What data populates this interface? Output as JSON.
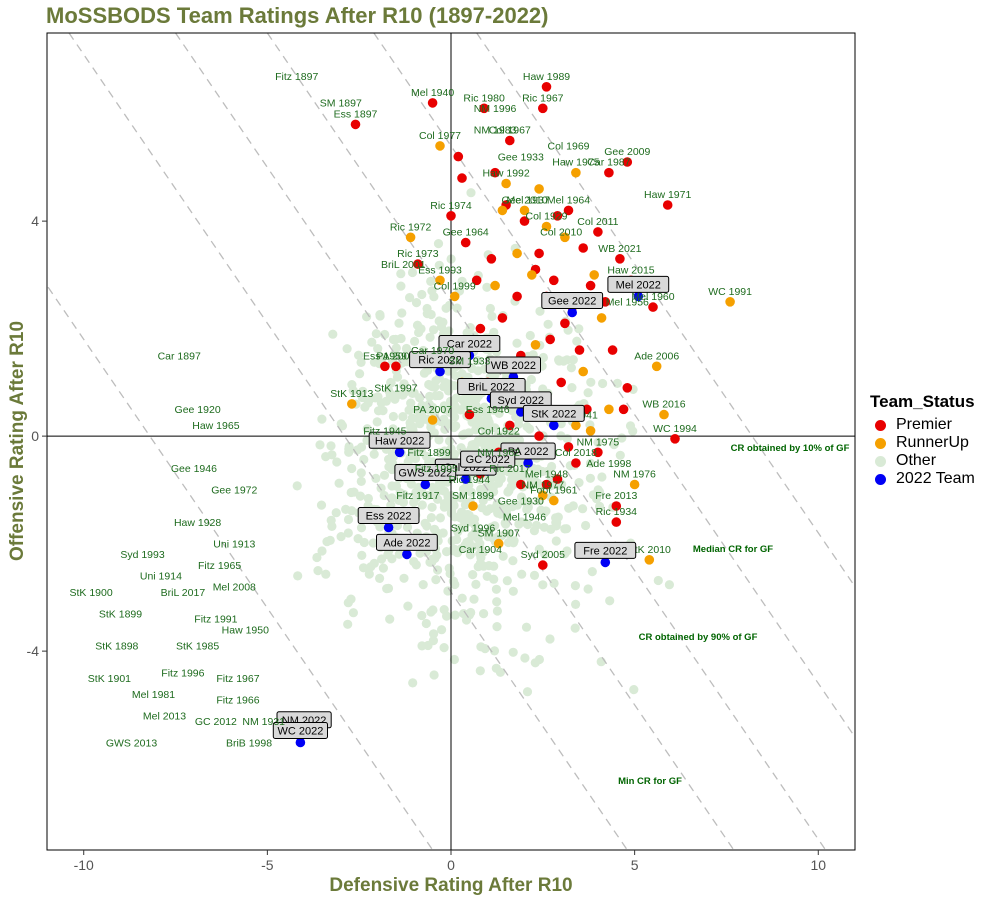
{
  "chart_data": {
    "type": "scatter",
    "title": "MoSSBODS Team Ratings After R10 (1897-2022)",
    "xlabel": "Defensive Rating After R10",
    "ylabel": "Offensive Rating After R10",
    "xlim": [
      -11,
      11
    ],
    "ylim": [
      -7.7,
      7.5
    ],
    "x_ticks": [
      -10,
      -5,
      0,
      5,
      10
    ],
    "y_ticks": [
      -4,
      0,
      4
    ],
    "grid": false,
    "legend_position": "right",
    "legend": {
      "title": "Team_Status",
      "entries": [
        {
          "label": "Premier",
          "color": "#e80000"
        },
        {
          "label": "RunnerUp",
          "color": "#f5a000"
        },
        {
          "label": "Other",
          "color": "#d9ead6"
        },
        {
          "label": "2022 Team",
          "color": "#0000f5"
        }
      ]
    },
    "reference_lines": [
      {
        "label": "CR obtained by 10% of GF",
        "c": 5.4
      },
      {
        "label": "Median CR for GF",
        "c": 2.5
      },
      {
        "label": "CR obtained by 90% of GF",
        "c": 0.0
      },
      {
        "label": "Min CR for GF",
        "c": -2.9
      }
    ],
    "series": [
      {
        "name": "Premier",
        "points": [
          {
            "x": 2.6,
            "y": 6.5,
            "label": "Haw 1989"
          },
          {
            "x": -0.5,
            "y": 6.2,
            "label": "Mel 1940"
          },
          {
            "x": 0.9,
            "y": 6.1,
            "label": "Ric 1980"
          },
          {
            "x": 2.5,
            "y": 6.1,
            "label": "Ric 1967"
          },
          {
            "x": -2.6,
            "y": 5.8,
            "label": "Ess 1897"
          },
          {
            "x": 1.6,
            "y": 5.5,
            "label": "Col 1967"
          },
          {
            "x": 4.8,
            "y": 5.1,
            "label": "Gee 2009"
          },
          {
            "x": 4.3,
            "y": 4.9,
            "label": "Car 1987"
          },
          {
            "x": 5.9,
            "y": 4.3,
            "label": "Haw 1971"
          },
          {
            "x": 0.0,
            "y": 4.1,
            "label": "Ric 1974"
          },
          {
            "x": 3.2,
            "y": 4.2,
            "label": "Mel 1964"
          },
          {
            "x": 4.0,
            "y": 3.8,
            "label": "Col 2011"
          },
          {
            "x": 0.4,
            "y": 3.6,
            "label": "Gee 1964"
          },
          {
            "x": -0.9,
            "y": 3.2,
            "label": "Ric 1973"
          },
          {
            "x": 4.6,
            "y": 3.3,
            "label": "WB 2021"
          },
          {
            "x": 4.9,
            "y": 2.9,
            "label": "Haw 2015"
          },
          {
            "x": 5.5,
            "y": 2.4,
            "label": "Mel 1960"
          },
          {
            "x": 4.0,
            "y": -0.3,
            "label": "NM 1975"
          },
          {
            "x": 3.4,
            "y": -0.5,
            "label": "Col 2018"
          },
          {
            "x": 6.1,
            "y": -0.05,
            "label": "WC 1994"
          },
          {
            "x": 2.6,
            "y": -0.9,
            "label": "Mel 1948"
          },
          {
            "x": 4.5,
            "y": -1.3,
            "label": "Fre 2013"
          },
          {
            "x": 4.5,
            "y": -1.6,
            "label": "Ric 1934"
          },
          {
            "x": 2.5,
            "y": -2.4,
            "label": "Syd 2005"
          },
          {
            "x": -1.8,
            "y": 1.3,
            "label": "Ess 1959"
          },
          {
            "x": -1.5,
            "y": 1.3,
            "label": "PA 2004"
          },
          {
            "x": 2.7,
            "y": 1.8
          },
          {
            "x": 3.1,
            "y": 2.1
          },
          {
            "x": 1.8,
            "y": 2.6
          },
          {
            "x": 2.3,
            "y": 3.1
          },
          {
            "x": 1.2,
            "y": 4.9
          },
          {
            "x": 1.5,
            "y": 4.3
          },
          {
            "x": 2.9,
            "y": 4.1
          },
          {
            "x": 0.3,
            "y": 4.8
          },
          {
            "x": 2.0,
            "y": 4.0
          },
          {
            "x": 3.6,
            "y": 3.5
          },
          {
            "x": 1.1,
            "y": 3.3
          },
          {
            "x": 2.4,
            "y": 3.4
          },
          {
            "x": 0.7,
            "y": 2.9
          },
          {
            "x": 3.8,
            "y": 2.8
          },
          {
            "x": 1.4,
            "y": 2.2
          },
          {
            "x": 2.8,
            "y": 2.9
          },
          {
            "x": 4.2,
            "y": 2.5
          },
          {
            "x": 0.8,
            "y": 2.0
          },
          {
            "x": 1.9,
            "y": 1.5
          },
          {
            "x": 3.5,
            "y": 1.6
          },
          {
            "x": 4.4,
            "y": 1.6
          },
          {
            "x": 1.0,
            "y": 1.0
          },
          {
            "x": 2.1,
            "y": 0.6
          },
          {
            "x": 3.0,
            "y": 1.0
          },
          {
            "x": 4.8,
            "y": 0.9
          },
          {
            "x": 1.6,
            "y": 0.2
          },
          {
            "x": 3.7,
            "y": 0.5
          },
          {
            "x": 0.5,
            "y": 0.4
          },
          {
            "x": 2.4,
            "y": 0.0
          },
          {
            "x": 4.7,
            "y": 0.5
          },
          {
            "x": 1.3,
            "y": -0.3
          },
          {
            "x": 3.2,
            "y": -0.2
          },
          {
            "x": 0.8,
            "y": -0.7
          },
          {
            "x": 2.9,
            "y": -0.8
          },
          {
            "x": 1.9,
            "y": -0.9
          },
          {
            "x": 0.2,
            "y": 5.2
          },
          {
            "x": 3.3,
            "y": 2.4
          },
          {
            "x": 2.6,
            "y": 2.6
          }
        ]
      },
      {
        "name": "RunnerUp",
        "points": [
          {
            "x": -0.3,
            "y": 5.4,
            "label": "Col 1977"
          },
          {
            "x": 1.5,
            "y": 4.7,
            "label": "Haw 1992"
          },
          {
            "x": 3.4,
            "y": 4.9,
            "label": "Haw 1975"
          },
          {
            "x": 2.0,
            "y": 4.2,
            "label": "Gee 2010"
          },
          {
            "x": 2.6,
            "y": 3.9,
            "label": "Col 1929"
          },
          {
            "x": -1.1,
            "y": 3.7,
            "label": "Ric 1972"
          },
          {
            "x": -0.3,
            "y": 2.9,
            "label": "Ess 1993"
          },
          {
            "x": 0.1,
            "y": 2.6,
            "label": "Col 1999"
          },
          {
            "x": 7.6,
            "y": 2.5,
            "label": "WC 1991"
          },
          {
            "x": 5.6,
            "y": 1.3,
            "label": "Ade 2006"
          },
          {
            "x": 5.8,
            "y": 0.4,
            "label": "WB 2016"
          },
          {
            "x": -2.7,
            "y": 0.6,
            "label": "StK 1913"
          },
          {
            "x": -0.5,
            "y": 0.3,
            "label": "PA 2007"
          },
          {
            "x": 3.4,
            "y": 0.2,
            "label": "Ess 1941"
          },
          {
            "x": 5.0,
            "y": -0.9,
            "label": "NM 1976"
          },
          {
            "x": 2.5,
            "y": -1.1,
            "label": "NM 1977"
          },
          {
            "x": 2.8,
            "y": -1.2,
            "label": "Foot 1961"
          },
          {
            "x": 5.4,
            "y": -2.3,
            "label": "StK 2010"
          },
          {
            "x": 1.3,
            "y": -2.0,
            "label": "SM 1907"
          },
          {
            "x": 0.6,
            "y": -1.3,
            "label": "SM 1899"
          },
          {
            "x": 1.8,
            "y": 3.4
          },
          {
            "x": 2.2,
            "y": 3.0
          },
          {
            "x": 3.9,
            "y": 3.0
          },
          {
            "x": 1.2,
            "y": 2.8
          },
          {
            "x": 3.0,
            "y": 2.5
          },
          {
            "x": 4.1,
            "y": 2.2
          },
          {
            "x": 0.9,
            "y": 1.7
          },
          {
            "x": 2.3,
            "y": 1.7
          },
          {
            "x": 3.6,
            "y": 1.2
          },
          {
            "x": 4.3,
            "y": 0.5
          },
          {
            "x": 1.7,
            "y": 0.9
          },
          {
            "x": 2.6,
            "y": 0.5
          },
          {
            "x": 3.8,
            "y": 0.1
          },
          {
            "x": 0.3,
            "y": 1.0
          },
          {
            "x": 1.4,
            "y": 4.2
          },
          {
            "x": 2.4,
            "y": 4.6
          },
          {
            "x": 3.1,
            "y": 3.7
          }
        ]
      },
      {
        "name": "2022 Team",
        "points": [
          {
            "x": 5.1,
            "y": 2.6,
            "label": "Mel 2022"
          },
          {
            "x": 3.3,
            "y": 2.3,
            "label": "Gee 2022"
          },
          {
            "x": 0.5,
            "y": 1.5,
            "label": "Car 2022"
          },
          {
            "x": 1.7,
            "y": 1.1,
            "label": "WB 2022"
          },
          {
            "x": -0.3,
            "y": 1.2,
            "label": "Ric 2022"
          },
          {
            "x": 1.1,
            "y": 0.7,
            "label": "BriL 2022"
          },
          {
            "x": 1.9,
            "y": 0.45,
            "label": "Syd 2022"
          },
          {
            "x": 2.8,
            "y": 0.2,
            "label": "StK 2022"
          },
          {
            "x": -1.4,
            "y": -0.3,
            "label": "Haw 2022"
          },
          {
            "x": 2.1,
            "y": -0.5,
            "label": "PA 2022"
          },
          {
            "x": 0.4,
            "y": -0.8,
            "label": "Col 2022"
          },
          {
            "x": -0.7,
            "y": -0.9,
            "label": "GWS 2022"
          },
          {
            "x": 1.0,
            "y": -0.65,
            "label": "GC 2022"
          },
          {
            "x": -1.7,
            "y": -1.7,
            "label": "Ess 2022"
          },
          {
            "x": -1.2,
            "y": -2.2,
            "label": "Ade 2022"
          },
          {
            "x": 4.2,
            "y": -2.35,
            "label": "Fre 2022"
          },
          {
            "x": -4.0,
            "y": -5.5,
            "label": "NM 2022"
          },
          {
            "x": -4.1,
            "y": -5.7,
            "label": "WC 2022"
          }
        ]
      }
    ],
    "boxed_labels": [
      "Mel 2022",
      "Gee 2022",
      "Car 2022",
      "WB 2022",
      "Ric 2022",
      "BriL 2022",
      "Syd 2022",
      "StK 2022",
      "Haw 2022",
      "PA 2022",
      "Col 2022",
      "GWS 2022",
      "GC 2022",
      "Ess 2022",
      "Ade 2022",
      "Fre 2022",
      "NM 2022",
      "WC 2022"
    ],
    "other_labels": [
      {
        "x": -4.2,
        "y": 6.5,
        "label": "Fitz 1897"
      },
      {
        "x": -3.0,
        "y": 6.0,
        "label": "SM 1897"
      },
      {
        "x": 1.2,
        "y": 5.9,
        "label": "NM 1996"
      },
      {
        "x": 1.2,
        "y": 5.5,
        "label": "NM 1983"
      },
      {
        "x": 3.2,
        "y": 5.2,
        "label": "Col 1969"
      },
      {
        "x": 1.9,
        "y": 5.0,
        "label": "Gee 1933"
      },
      {
        "x": 2.1,
        "y": 4.2,
        "label": "Mel 1937"
      },
      {
        "x": 3.0,
        "y": 3.6,
        "label": "Col 2010"
      },
      {
        "x": -1.3,
        "y": 3.0,
        "label": "BriL 2001"
      },
      {
        "x": 4.8,
        "y": 2.3,
        "label": "Mel 1956"
      },
      {
        "x": -7.4,
        "y": 1.3,
        "label": "Car 1897"
      },
      {
        "x": -0.5,
        "y": 1.4,
        "label": "Car 1970"
      },
      {
        "x": 0.5,
        "y": 1.2,
        "label": "SM 1933"
      },
      {
        "x": -1.5,
        "y": 0.7,
        "label": "StK 1997"
      },
      {
        "x": 1.0,
        "y": 0.3,
        "label": "Ess 1946"
      },
      {
        "x": -6.9,
        "y": 0.3,
        "label": "Gee 1920"
      },
      {
        "x": -6.4,
        "y": 0.0,
        "label": "Haw 1965"
      },
      {
        "x": -1.8,
        "y": -0.1,
        "label": "Fitz 1945"
      },
      {
        "x": 1.3,
        "y": -0.1,
        "label": "Col 1922"
      },
      {
        "x": -0.6,
        "y": -0.5,
        "label": "Fitz 1899"
      },
      {
        "x": 1.3,
        "y": -0.5,
        "label": "NM 1962"
      },
      {
        "x": 4.3,
        "y": -0.7,
        "label": "Ade 1998"
      },
      {
        "x": -7.0,
        "y": -0.8,
        "label": "Gee 1946"
      },
      {
        "x": -0.4,
        "y": -0.8,
        "label": "Fitz 1995"
      },
      {
        "x": 1.6,
        "y": -0.8,
        "label": "Ric 2017"
      },
      {
        "x": -5.9,
        "y": -1.2,
        "label": "Gee 1972"
      },
      {
        "x": 0.5,
        "y": -1.0,
        "label": "Ric 1944"
      },
      {
        "x": -0.9,
        "y": -1.3,
        "label": "Fitz 1917"
      },
      {
        "x": 1.9,
        "y": -1.4,
        "label": "Gee 1930"
      },
      {
        "x": 2.0,
        "y": -1.7,
        "label": "Mel 1946"
      },
      {
        "x": 0.6,
        "y": -1.9,
        "label": "Syd 1996"
      },
      {
        "x": 0.8,
        "y": -2.3,
        "label": "Car 1904"
      },
      {
        "x": -6.9,
        "y": -1.8,
        "label": "Haw 1928"
      },
      {
        "x": -5.9,
        "y": -2.2,
        "label": "Uni 1913"
      },
      {
        "x": -8.4,
        "y": -2.4,
        "label": "Syd 1993"
      },
      {
        "x": -6.3,
        "y": -2.6,
        "label": "Fitz 1965"
      },
      {
        "x": -7.9,
        "y": -2.8,
        "label": "Uni 1914"
      },
      {
        "x": -9.8,
        "y": -3.1,
        "label": "StK 1900"
      },
      {
        "x": -7.3,
        "y": -3.1,
        "label": "BriL 2017"
      },
      {
        "x": -5.9,
        "y": -3.0,
        "label": "Mel 2008"
      },
      {
        "x": -9.0,
        "y": -3.5,
        "label": "StK 1899"
      },
      {
        "x": -6.4,
        "y": -3.6,
        "label": "Fitz 1991"
      },
      {
        "x": -5.6,
        "y": -3.8,
        "label": "Haw 1950"
      },
      {
        "x": -9.1,
        "y": -4.1,
        "label": "StK 1898"
      },
      {
        "x": -6.9,
        "y": -4.1,
        "label": "StK 1985"
      },
      {
        "x": -7.3,
        "y": -4.6,
        "label": "Fitz 1996"
      },
      {
        "x": -5.8,
        "y": -4.7,
        "label": "Fitz 1967"
      },
      {
        "x": -9.3,
        "y": -4.7,
        "label": "StK 1901"
      },
      {
        "x": -8.1,
        "y": -5.0,
        "label": "Mel 1981"
      },
      {
        "x": -5.8,
        "y": -5.1,
        "label": "Fitz 1966"
      },
      {
        "x": -7.8,
        "y": -5.4,
        "label": "Mel 2013"
      },
      {
        "x": -6.4,
        "y": -5.5,
        "label": "GC 2012"
      },
      {
        "x": -5.1,
        "y": -5.5,
        "label": "NM 1931"
      },
      {
        "x": -8.7,
        "y": -5.9,
        "label": "GWS 2013"
      },
      {
        "x": -5.5,
        "y": -5.9,
        "label": "BriB 1998"
      }
    ]
  }
}
